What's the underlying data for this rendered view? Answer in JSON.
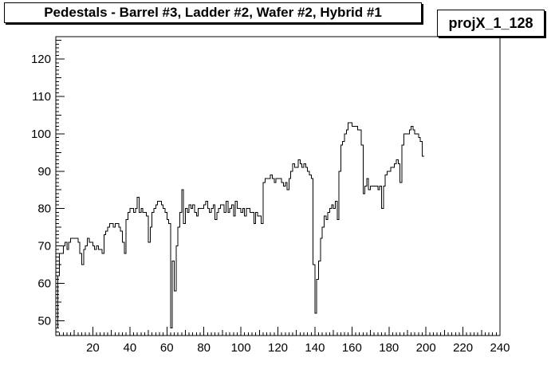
{
  "chart_data": {
    "type": "histogram",
    "title": "Pedestals - Barrel #3, Ladder #2, Wafer #2, Hybrid #1",
    "stats_label": "projX_1_128",
    "xlim": [
      0,
      240
    ],
    "ylim": [
      46,
      126
    ],
    "x_ticks": [
      20,
      40,
      60,
      80,
      100,
      120,
      140,
      160,
      180,
      200,
      220,
      240
    ],
    "y_ticks": [
      50,
      60,
      70,
      80,
      90,
      100,
      110,
      120
    ],
    "bin_width": 1,
    "bins": [
      [
        0,
        48
      ],
      [
        1,
        62
      ],
      [
        2,
        68
      ],
      [
        3,
        68
      ],
      [
        4,
        70
      ],
      [
        5,
        71
      ],
      [
        6,
        69
      ],
      [
        7,
        71
      ],
      [
        8,
        72
      ],
      [
        9,
        72
      ],
      [
        10,
        72
      ],
      [
        11,
        72
      ],
      [
        12,
        71
      ],
      [
        13,
        68
      ],
      [
        14,
        65
      ],
      [
        15,
        69
      ],
      [
        16,
        70
      ],
      [
        17,
        72
      ],
      [
        18,
        71
      ],
      [
        19,
        71
      ],
      [
        20,
        70
      ],
      [
        21,
        69
      ],
      [
        22,
        70
      ],
      [
        23,
        69
      ],
      [
        24,
        69
      ],
      [
        25,
        68
      ],
      [
        26,
        73
      ],
      [
        27,
        74
      ],
      [
        28,
        75
      ],
      [
        29,
        76
      ],
      [
        30,
        76
      ],
      [
        31,
        75
      ],
      [
        32,
        76
      ],
      [
        33,
        76
      ],
      [
        34,
        75
      ],
      [
        35,
        74
      ],
      [
        36,
        71
      ],
      [
        37,
        68
      ],
      [
        38,
        77
      ],
      [
        39,
        79
      ],
      [
        40,
        80
      ],
      [
        41,
        80
      ],
      [
        42,
        79
      ],
      [
        43,
        80
      ],
      [
        44,
        83
      ],
      [
        45,
        79
      ],
      [
        46,
        80
      ],
      [
        47,
        79
      ],
      [
        48,
        79
      ],
      [
        49,
        78
      ],
      [
        50,
        71
      ],
      [
        51,
        75
      ],
      [
        52,
        79
      ],
      [
        53,
        80
      ],
      [
        54,
        81
      ],
      [
        55,
        82
      ],
      [
        56,
        82
      ],
      [
        57,
        81
      ],
      [
        58,
        80
      ],
      [
        59,
        79
      ],
      [
        60,
        77
      ],
      [
        61,
        76
      ],
      [
        62,
        48
      ],
      [
        63,
        66
      ],
      [
        64,
        58
      ],
      [
        65,
        70
      ],
      [
        66,
        75
      ],
      [
        67,
        79
      ],
      [
        68,
        85
      ],
      [
        69,
        76
      ],
      [
        70,
        80
      ],
      [
        71,
        79
      ],
      [
        72,
        81
      ],
      [
        73,
        80
      ],
      [
        74,
        81
      ],
      [
        75,
        79
      ],
      [
        76,
        78
      ],
      [
        77,
        80
      ],
      [
        78,
        80
      ],
      [
        79,
        80
      ],
      [
        80,
        81
      ],
      [
        81,
        82
      ],
      [
        82,
        80
      ],
      [
        83,
        79
      ],
      [
        84,
        80
      ],
      [
        85,
        81
      ],
      [
        86,
        77
      ],
      [
        87,
        79
      ],
      [
        88,
        80
      ],
      [
        89,
        81
      ],
      [
        90,
        81
      ],
      [
        91,
        79
      ],
      [
        92,
        82
      ],
      [
        93,
        79
      ],
      [
        94,
        80
      ],
      [
        95,
        81
      ],
      [
        96,
        78
      ],
      [
        97,
        82
      ],
      [
        98,
        80
      ],
      [
        99,
        80
      ],
      [
        100,
        79
      ],
      [
        101,
        80
      ],
      [
        102,
        78
      ],
      [
        103,
        80
      ],
      [
        104,
        80
      ],
      [
        105,
        79
      ],
      [
        106,
        79
      ],
      [
        107,
        76
      ],
      [
        108,
        79
      ],
      [
        109,
        78
      ],
      [
        110,
        78
      ],
      [
        111,
        76
      ],
      [
        112,
        87
      ],
      [
        113,
        88
      ],
      [
        114,
        88
      ],
      [
        115,
        88
      ],
      [
        116,
        89
      ],
      [
        117,
        88
      ],
      [
        118,
        87
      ],
      [
        119,
        88
      ],
      [
        120,
        88
      ],
      [
        121,
        88
      ],
      [
        122,
        87
      ],
      [
        123,
        86
      ],
      [
        124,
        87
      ],
      [
        125,
        85
      ],
      [
        126,
        88
      ],
      [
        127,
        90
      ],
      [
        128,
        92
      ],
      [
        129,
        91
      ],
      [
        130,
        91
      ],
      [
        131,
        93
      ],
      [
        132,
        92
      ],
      [
        133,
        91
      ],
      [
        134,
        92
      ],
      [
        135,
        91
      ],
      [
        136,
        90
      ],
      [
        137,
        89
      ],
      [
        138,
        88
      ],
      [
        139,
        65
      ],
      [
        140,
        52
      ],
      [
        141,
        61
      ],
      [
        142,
        66
      ],
      [
        143,
        72
      ],
      [
        144,
        75
      ],
      [
        145,
        78
      ],
      [
        146,
        77
      ],
      [
        147,
        79
      ],
      [
        148,
        80
      ],
      [
        149,
        81
      ],
      [
        150,
        80
      ],
      [
        151,
        82
      ],
      [
        152,
        77
      ],
      [
        153,
        90
      ],
      [
        154,
        97
      ],
      [
        155,
        98
      ],
      [
        156,
        100
      ],
      [
        157,
        101
      ],
      [
        158,
        103
      ],
      [
        159,
        103
      ],
      [
        160,
        102
      ],
      [
        161,
        102
      ],
      [
        162,
        102
      ],
      [
        163,
        101
      ],
      [
        164,
        101
      ],
      [
        165,
        97
      ],
      [
        166,
        84
      ],
      [
        167,
        86
      ],
      [
        168,
        88
      ],
      [
        169,
        85
      ],
      [
        170,
        86
      ],
      [
        171,
        86
      ],
      [
        172,
        86
      ],
      [
        173,
        86
      ],
      [
        174,
        85
      ],
      [
        175,
        86
      ],
      [
        176,
        80
      ],
      [
        177,
        86
      ],
      [
        178,
        89
      ],
      [
        179,
        90
      ],
      [
        180,
        90
      ],
      [
        181,
        91
      ],
      [
        182,
        91
      ],
      [
        183,
        92
      ],
      [
        184,
        93
      ],
      [
        185,
        92
      ],
      [
        186,
        87
      ],
      [
        187,
        97
      ],
      [
        188,
        100
      ],
      [
        189,
        100
      ],
      [
        190,
        100
      ],
      [
        191,
        101
      ],
      [
        192,
        102
      ],
      [
        193,
        101
      ],
      [
        194,
        100
      ],
      [
        195,
        100
      ],
      [
        196,
        99
      ],
      [
        197,
        98
      ],
      [
        198,
        94
      ]
    ]
  }
}
